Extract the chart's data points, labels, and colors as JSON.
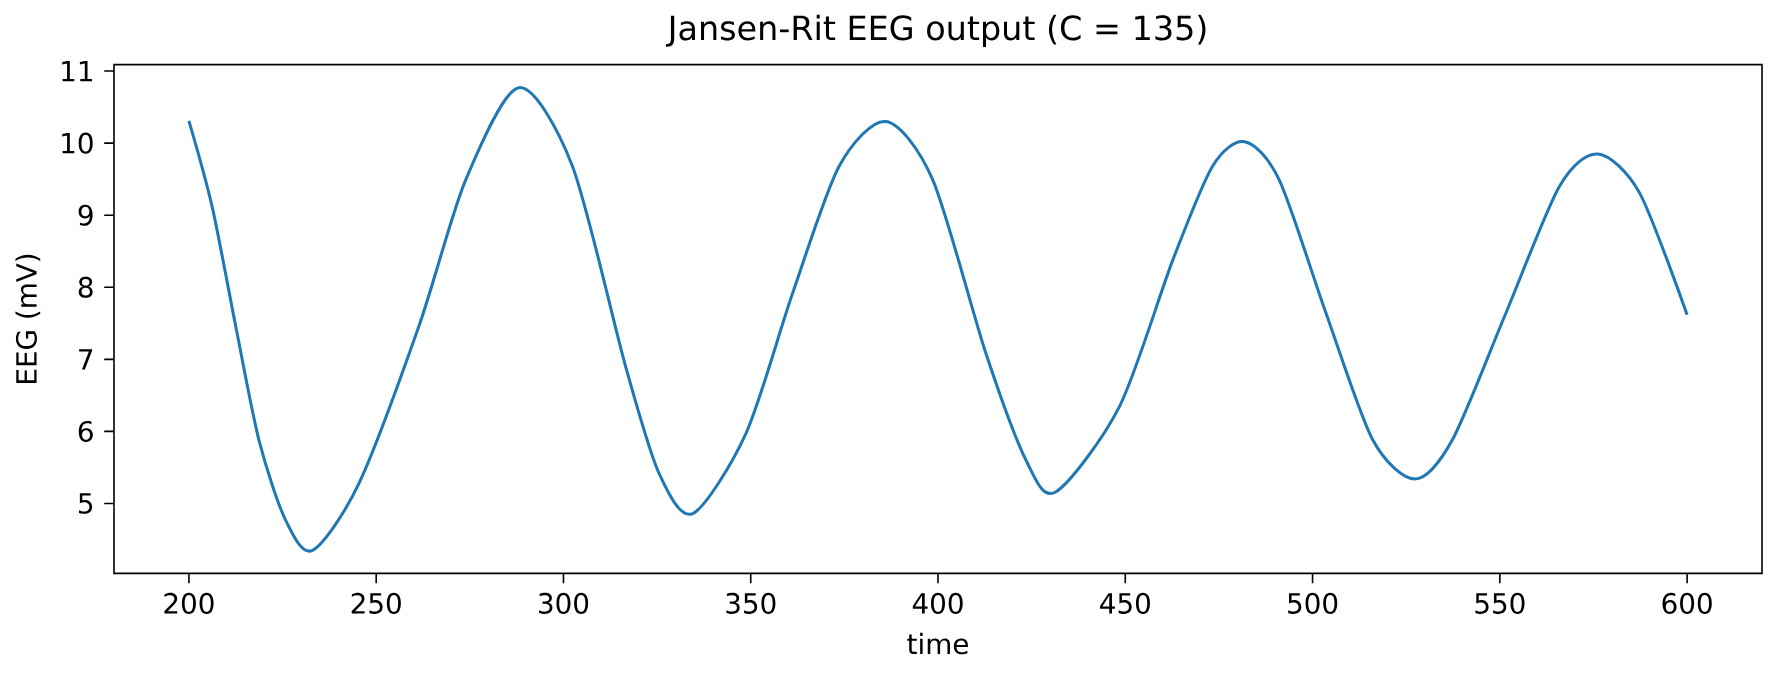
{
  "chart_data": {
    "type": "line",
    "title": "Jansen-Rit EEG output (C = 135)",
    "xlabel": "time",
    "ylabel": "EEG (mV)",
    "x": [
      200,
      206.2,
      212.5,
      218.7,
      225.8,
      233,
      245.4,
      261.4,
      273.9,
      288.1,
      302.4,
      316.6,
      325.5,
      334.5,
      348.7,
      361.2,
      373.6,
      386.1,
      398.6,
      412.8,
      423.5,
      431.4,
      448.4,
      462.7,
      473.3,
      481.9,
      491.1,
      503.6,
      516.1,
      527.3,
      537.3,
      551.6,
      565.9,
      576.2,
      587.3,
      600
    ],
    "series": [
      {
        "color": "#1f77b4",
        "values": [
          10.31,
          9.12,
          7.46,
          5.88,
          4.77,
          4.35,
          5.28,
          7.46,
          9.49,
          10.77,
          9.68,
          6.9,
          5.42,
          4.86,
          5.97,
          7.92,
          9.68,
          10.3,
          9.49,
          7.08,
          5.6,
          5.16,
          6.34,
          8.38,
          9.68,
          10.02,
          9.49,
          7.64,
          5.88,
          5.34,
          5.88,
          7.64,
          9.4,
          9.85,
          9.31,
          7.62
        ]
      }
    ],
    "xlim": [
      180,
      620
    ],
    "ylim": [
      4.03,
      11.09
    ],
    "xticks": [
      200,
      250,
      300,
      350,
      400,
      450,
      500,
      550,
      600
    ],
    "yticks": [
      5,
      6,
      7,
      8,
      9,
      10,
      11
    ],
    "marker": "none",
    "line_style": "solid"
  }
}
